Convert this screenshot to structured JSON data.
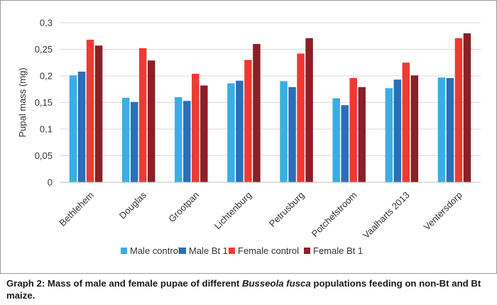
{
  "chart_data": {
    "type": "bar",
    "ylabel": "Pupal mass (mg)",
    "ylim": [
      0,
      0.3
    ],
    "yticks": [
      "0",
      "0,05",
      "0,1",
      "0,15",
      "0,2",
      "0,25",
      "0,3"
    ],
    "ytick_values": [
      0,
      0.05,
      0.1,
      0.15,
      0.2,
      0.25,
      0.3
    ],
    "grid": true,
    "legend_position": "bottom",
    "categories": [
      "Bethlehem",
      "Douglas",
      "Grootpan",
      "Lichtenburg",
      "Petrusburg",
      "Potchefstroom",
      "Vaalharts 2013",
      "Ventersdorp"
    ],
    "series": [
      {
        "name": "Male control",
        "color": "#3aaee3",
        "values": [
          0.201,
          0.159,
          0.16,
          0.186,
          0.19,
          0.158,
          0.177,
          0.197
        ]
      },
      {
        "name": "Male Bt 1",
        "color": "#2a6fb8",
        "values": [
          0.208,
          0.151,
          0.153,
          0.191,
          0.179,
          0.145,
          0.193,
          0.196
        ]
      },
      {
        "name": "Female control",
        "color": "#ee3a33",
        "values": [
          0.268,
          0.252,
          0.204,
          0.23,
          0.242,
          0.196,
          0.225,
          0.271
        ]
      },
      {
        "name": "Female Bt 1",
        "color": "#8b2027",
        "values": [
          0.257,
          0.229,
          0.182,
          0.26,
          0.271,
          0.179,
          0.201,
          0.28
        ]
      }
    ]
  },
  "caption": {
    "part1": "Graph 2: Mass of male and female pupae of different ",
    "italic": "Busseola fusca",
    "part2": " populations feeding on non-Bt and Bt maize."
  }
}
